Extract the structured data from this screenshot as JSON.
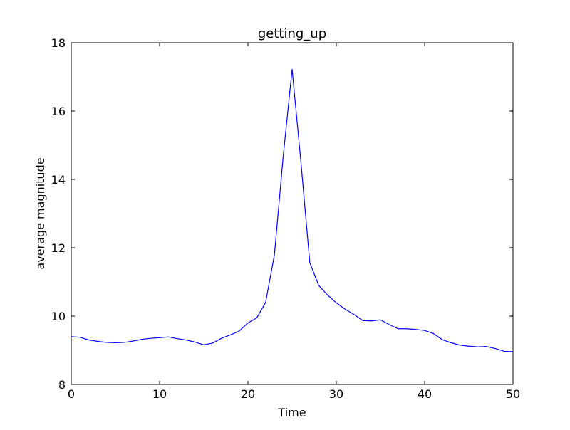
{
  "chart_data": {
    "type": "line",
    "title": "getting_up",
    "xlabel": "Time",
    "ylabel": "average magnitude",
    "xlim": [
      0,
      50
    ],
    "ylim": [
      8,
      18
    ],
    "xticks": [
      0,
      10,
      20,
      30,
      40,
      50
    ],
    "yticks": [
      8,
      10,
      12,
      14,
      16,
      18
    ],
    "grid": false,
    "series": [
      {
        "color": "#0000ff",
        "x": [
          0,
          1,
          2,
          3,
          4,
          5,
          6,
          7,
          8,
          9,
          10,
          11,
          12,
          13,
          14,
          15,
          16,
          17,
          18,
          19,
          20,
          21,
          22,
          23,
          24,
          25,
          26,
          27,
          28,
          29,
          30,
          31,
          32,
          33,
          34,
          35,
          36,
          37,
          38,
          39,
          40,
          41,
          42,
          43,
          44,
          45,
          46,
          47,
          48,
          49,
          50
        ],
        "y": [
          9.4,
          9.38,
          9.3,
          9.26,
          9.23,
          9.22,
          9.23,
          9.27,
          9.32,
          9.35,
          9.37,
          9.39,
          9.34,
          9.3,
          9.24,
          9.16,
          9.21,
          9.35,
          9.45,
          9.56,
          9.8,
          9.95,
          10.4,
          11.8,
          14.7,
          17.22,
          14.5,
          11.57,
          10.9,
          10.62,
          10.39,
          10.2,
          10.05,
          9.87,
          9.86,
          9.89,
          9.75,
          9.63,
          9.63,
          9.61,
          9.58,
          9.49,
          9.31,
          9.22,
          9.15,
          9.12,
          9.1,
          9.11,
          9.05,
          8.97,
          8.96
        ]
      }
    ]
  }
}
